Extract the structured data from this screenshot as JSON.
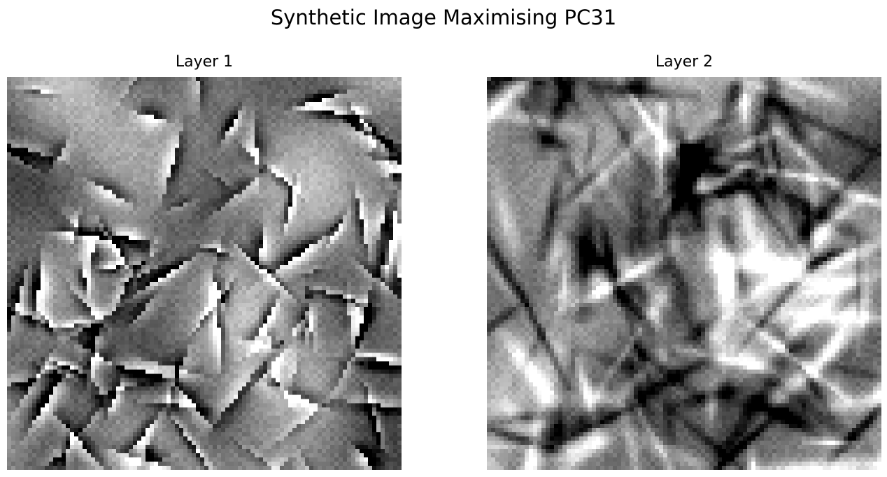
{
  "figure": {
    "title": "Synthetic Image Maximising PC31"
  },
  "panels": [
    {
      "title": "Layer 1",
      "colormap": "gray",
      "texture": "sparse-blobs"
    },
    {
      "title": "Layer 2",
      "colormap": "gray",
      "texture": "ridged-strokes"
    }
  ]
}
